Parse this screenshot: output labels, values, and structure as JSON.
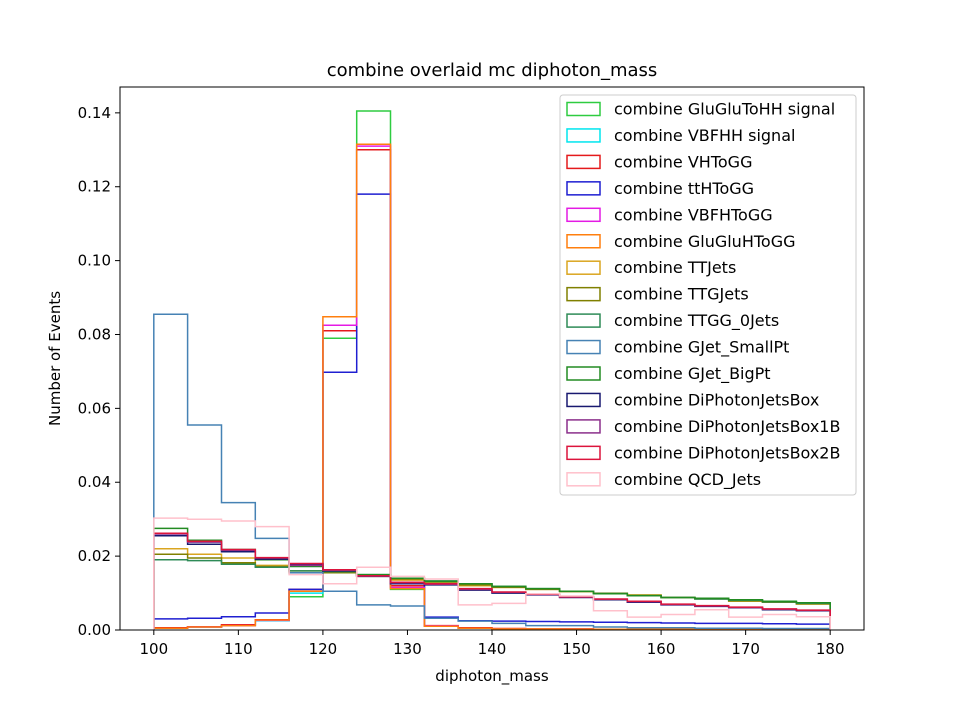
{
  "chart_data": {
    "type": "step-histogram",
    "title": "combine overlaid mc diphoton_mass",
    "xlabel": "diphoton_mass",
    "ylabel": "Number of Events",
    "xlim": [
      96,
      184
    ],
    "ylim": [
      0,
      0.147
    ],
    "xticks": [
      100,
      110,
      120,
      130,
      140,
      150,
      160,
      170,
      180
    ],
    "yticks": [
      0.0,
      0.02,
      0.04,
      0.06,
      0.08,
      0.1,
      0.12,
      0.14
    ],
    "ytick_labels": [
      "0.00",
      "0.02",
      "0.04",
      "0.06",
      "0.08",
      "0.10",
      "0.12",
      "0.14"
    ],
    "bin_edges": [
      100,
      104,
      108,
      112,
      116,
      120,
      124,
      128,
      132,
      136,
      140,
      144,
      148,
      152,
      156,
      160,
      164,
      168,
      172,
      176,
      180
    ],
    "legend_position": "upper right",
    "grid": false,
    "series": [
      {
        "name": "combine GluGluToHH signal",
        "color": "#2ecc40",
        "values": [
          0.0005,
          0.0008,
          0.0012,
          0.0025,
          0.009,
          0.079,
          0.1405,
          0.011,
          0.001,
          0.0005,
          0.0003,
          0.0003,
          0.0002,
          0.0002,
          0.0002,
          0.0002,
          0.0002,
          0.0002,
          0.0001,
          0.0001
        ]
      },
      {
        "name": "combine VBFHH signal",
        "color": "#00e5ee",
        "values": [
          0.0005,
          0.0008,
          0.0012,
          0.0025,
          0.01,
          0.081,
          0.13,
          0.012,
          0.001,
          0.0005,
          0.0003,
          0.0003,
          0.0002,
          0.0002,
          0.0002,
          0.0002,
          0.0002,
          0.0002,
          0.0001,
          0.0001
        ]
      },
      {
        "name": "combine VHToGG",
        "color": "#e41a1c",
        "values": [
          0.0006,
          0.0009,
          0.0014,
          0.0028,
          0.011,
          0.081,
          0.13,
          0.012,
          0.0012,
          0.0006,
          0.0004,
          0.0003,
          0.0003,
          0.0002,
          0.0002,
          0.0002,
          0.0002,
          0.0002,
          0.0002,
          0.0001
        ]
      },
      {
        "name": "combine ttHToGG",
        "color": "#1f1fd1",
        "values": [
          0.003,
          0.0032,
          0.0036,
          0.0046,
          0.011,
          0.0698,
          0.118,
          0.0125,
          0.0035,
          0.0025,
          0.0024,
          0.0023,
          0.0022,
          0.0021,
          0.002,
          0.0019,
          0.0018,
          0.0018,
          0.0017,
          0.0016
        ]
      },
      {
        "name": "combine VBFHToGG",
        "color": "#e41ae4",
        "values": [
          0.0005,
          0.0008,
          0.0012,
          0.0026,
          0.0105,
          0.0825,
          0.131,
          0.0115,
          0.0011,
          0.0005,
          0.0003,
          0.0003,
          0.0002,
          0.0002,
          0.0002,
          0.0002,
          0.0002,
          0.0002,
          0.0001,
          0.0001
        ]
      },
      {
        "name": "combine GluGluHToGG",
        "color": "#ff7f0e",
        "values": [
          0.0005,
          0.0008,
          0.0012,
          0.0027,
          0.0105,
          0.0848,
          0.1315,
          0.0112,
          0.001,
          0.0005,
          0.0003,
          0.0003,
          0.0002,
          0.0002,
          0.0002,
          0.0002,
          0.0002,
          0.0002,
          0.0001,
          0.0001
        ]
      },
      {
        "name": "combine TTJets",
        "color": "#daa520",
        "values": [
          0.022,
          0.0205,
          0.0195,
          0.0175,
          0.0155,
          0.0155,
          0.0145,
          0.0135,
          0.013,
          0.012,
          0.0115,
          0.011,
          0.0105,
          0.01,
          0.0095,
          0.0088,
          0.0085,
          0.0078,
          0.0075,
          0.007
        ]
      },
      {
        "name": "combine TTGJets",
        "color": "#808000",
        "values": [
          0.0205,
          0.0195,
          0.0182,
          0.0172,
          0.016,
          0.0155,
          0.0148,
          0.0138,
          0.013,
          0.0122,
          0.0116,
          0.011,
          0.0104,
          0.0098,
          0.0093,
          0.0088,
          0.0084,
          0.0079,
          0.0075,
          0.0071
        ]
      },
      {
        "name": "combine TTGG_0Jets",
        "color": "#2e8b57",
        "values": [
          0.019,
          0.0188,
          0.0178,
          0.017,
          0.016,
          0.0158,
          0.015,
          0.014,
          0.0133,
          0.0125,
          0.0118,
          0.0112,
          0.0105,
          0.0099,
          0.0093,
          0.0088,
          0.0084,
          0.008,
          0.0076,
          0.0072
        ]
      },
      {
        "name": "combine GJet_SmallPt",
        "color": "#4682b4",
        "values": [
          0.0855,
          0.0555,
          0.0345,
          0.0248,
          0.0155,
          0.0105,
          0.0068,
          0.0065,
          0.0032,
          0.0024,
          0.0018,
          0.0012,
          0.0012,
          0.0008,
          0.0006,
          0.0006,
          0.0005,
          0.0005,
          0.0004,
          0.0004
        ]
      },
      {
        "name": "combine GJet_BigPt",
        "color": "#228b22",
        "values": [
          0.0275,
          0.0243,
          0.0218,
          0.019,
          0.0172,
          0.016,
          0.015,
          0.014,
          0.0132,
          0.0125,
          0.0118,
          0.0112,
          0.0105,
          0.0098,
          0.0093,
          0.0088,
          0.0086,
          0.0082,
          0.0078,
          0.0074
        ]
      },
      {
        "name": "combine DiPhotonJetsBox",
        "color": "#191970",
        "values": [
          0.0255,
          0.0232,
          0.0212,
          0.0192,
          0.0178,
          0.016,
          0.0145,
          0.0125,
          0.0122,
          0.0108,
          0.01,
          0.0095,
          0.0088,
          0.0082,
          0.0075,
          0.0068,
          0.0064,
          0.006,
          0.0055,
          0.0052
        ]
      },
      {
        "name": "combine DiPhotonJetsBox1B",
        "color": "#8b2f8b",
        "values": [
          0.026,
          0.0238,
          0.0216,
          0.0195,
          0.0175,
          0.0162,
          0.0146,
          0.0128,
          0.0124,
          0.011,
          0.0102,
          0.0096,
          0.0089,
          0.0083,
          0.0077,
          0.0069,
          0.0065,
          0.0061,
          0.0056,
          0.0053
        ]
      },
      {
        "name": "combine DiPhotonJetsBox2B",
        "color": "#dc143c",
        "values": [
          0.0262,
          0.024,
          0.0218,
          0.0196,
          0.018,
          0.0163,
          0.0147,
          0.0129,
          0.0125,
          0.0112,
          0.0103,
          0.0097,
          0.009,
          0.0084,
          0.0078,
          0.007,
          0.0066,
          0.0062,
          0.0057,
          0.0054
        ]
      },
      {
        "name": "combine QCD_Jets",
        "color": "#ffc0cb",
        "values": [
          0.0303,
          0.03,
          0.0295,
          0.028,
          0.015,
          0.0125,
          0.017,
          0.0145,
          0.0138,
          0.0068,
          0.0072,
          0.0098,
          0.0092,
          0.0052,
          0.0035,
          0.0042,
          0.0055,
          0.0035,
          0.0042,
          0.0036
        ]
      }
    ]
  }
}
